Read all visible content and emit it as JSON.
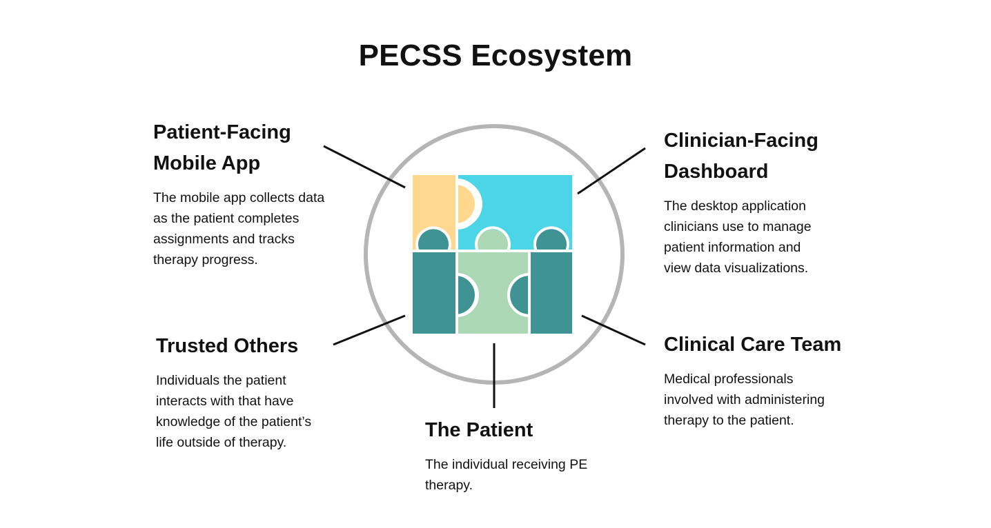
{
  "title": "PECSS Ecosystem",
  "colors": {
    "yellow_piece": "#FFD78E",
    "cyan_piece": "#4CD5E6",
    "teal_piece": "#3F9393",
    "mint_piece": "#ADD8B6",
    "ring": "#B5B5B5",
    "connector": "#111111"
  },
  "components": {
    "patient_app": {
      "title": "Patient-Facing\nMobile App",
      "description": "The mobile app collects data\nas the patient completes\nassignments and tracks\ntherapy progress."
    },
    "clinician_dashboard": {
      "title": "Clinician-Facing\nDashboard",
      "description": "The desktop application\nclinicians use to manage\npatient information and\nview data visualizations."
    },
    "trusted_others": {
      "title": "Trusted Others",
      "description": "Individuals the patient\ninteracts with that have\nknowledge of the patient’s\nlife outside of therapy."
    },
    "clinical_care_team": {
      "title": "Clinical Care Team",
      "description": "Medical professionals\ninvolved with administering\ntherapy to the patient."
    },
    "the_patient": {
      "title": "The Patient",
      "description": "The individual receiving PE\ntherapy."
    }
  }
}
